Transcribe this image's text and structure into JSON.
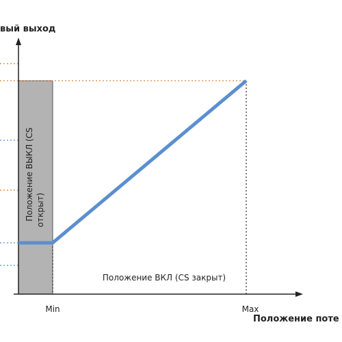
{
  "axes": {
    "y_label": "вый выход",
    "x_label": "Положение поте",
    "x_min": "Min",
    "x_max": "Max"
  },
  "regions": {
    "off_line1": "Положение ВЫКЛ (CS",
    "off_line2": "открыт)",
    "on": "Положение ВКЛ (CS закрыт)"
  }
}
